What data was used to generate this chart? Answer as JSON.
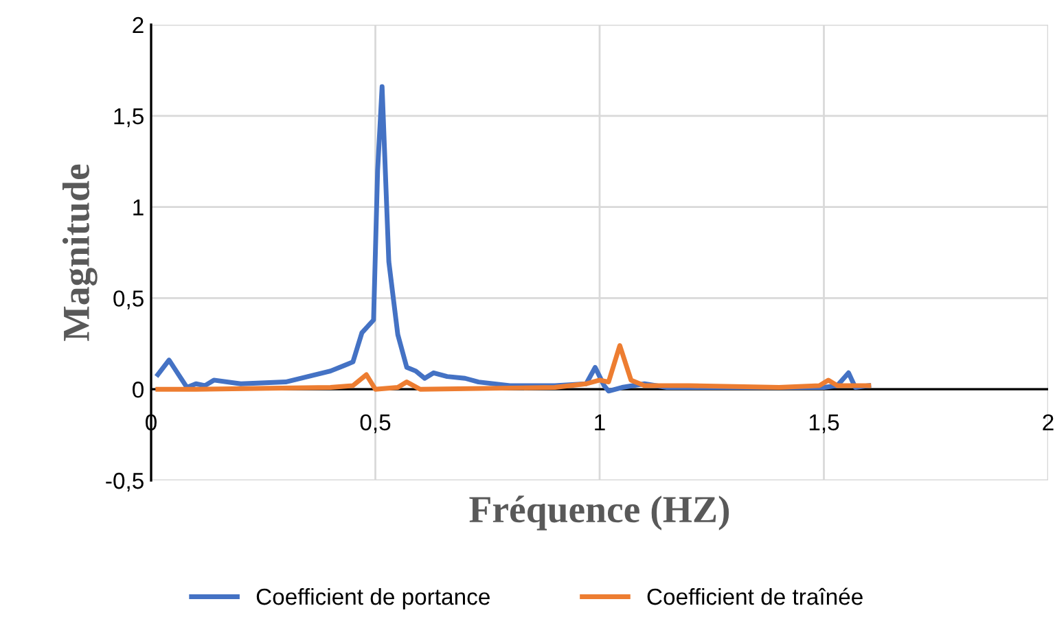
{
  "chart_data": {
    "type": "line",
    "xlabel": "Fréquence (HZ)",
    "ylabel": "Magnitude",
    "xlim": [
      0,
      2
    ],
    "xticks": [
      0,
      {
        "value": 0.5,
        "label": "0,5"
      },
      1,
      {
        "value": 1.5,
        "label": "1,5"
      },
      2
    ],
    "ylim": [
      -0.5,
      2
    ],
    "yticks": [
      {
        "value": -0.5,
        "label": "-0,5"
      },
      0,
      {
        "value": 0.5,
        "label": "0,5"
      },
      1,
      {
        "value": 1.5,
        "label": "1,5"
      },
      2
    ],
    "grid": true,
    "legend": "bottom",
    "marker": "none",
    "line_style": "solid",
    "series": [
      {
        "name": "Coefficient de portance",
        "color": "#4472c4",
        "x": [
          0.015,
          0.04,
          0.08,
          0.1,
          0.12,
          0.14,
          0.2,
          0.3,
          0.35,
          0.4,
          0.43,
          0.45,
          0.47,
          0.496,
          0.505,
          0.515,
          0.53,
          0.55,
          0.57,
          0.59,
          0.61,
          0.63,
          0.66,
          0.7,
          0.73,
          0.8,
          0.9,
          0.97,
          0.99,
          1.01,
          1.02,
          1.05,
          1.1,
          1.15,
          1.5,
          1.53,
          1.555,
          1.57,
          1.6
        ],
        "values": [
          0.08,
          0.16,
          0.01,
          0.03,
          0.02,
          0.05,
          0.03,
          0.04,
          0.07,
          0.1,
          0.13,
          0.15,
          0.31,
          0.38,
          1.2,
          1.66,
          0.7,
          0.3,
          0.12,
          0.1,
          0.06,
          0.09,
          0.07,
          0.06,
          0.04,
          0.02,
          0.02,
          0.03,
          0.12,
          0.02,
          -0.01,
          0.01,
          0.03,
          0.01,
          0.01,
          0.02,
          0.09,
          0.01,
          0.02
        ]
      },
      {
        "name": "Coefficient de traînée",
        "color": "#ed7d31",
        "x": [
          0.015,
          0.1,
          0.4,
          0.45,
          0.48,
          0.5,
          0.55,
          0.57,
          0.6,
          0.9,
          0.97,
          1.0,
          1.02,
          1.045,
          1.07,
          1.1,
          1.2,
          1.4,
          1.49,
          1.51,
          1.53,
          1.6
        ],
        "values": [
          0.0,
          0.0,
          0.01,
          0.02,
          0.08,
          0.0,
          0.01,
          0.04,
          0.0,
          0.01,
          0.03,
          0.05,
          0.04,
          0.24,
          0.05,
          0.02,
          0.02,
          0.01,
          0.02,
          0.05,
          0.02,
          0.02
        ]
      }
    ]
  }
}
